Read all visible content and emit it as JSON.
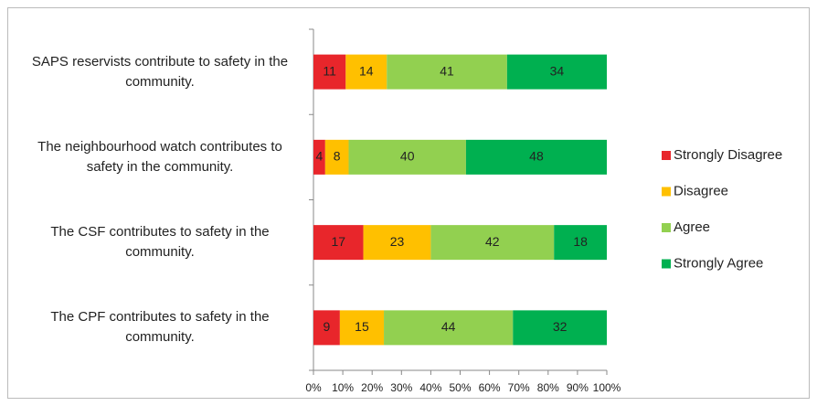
{
  "chart_data": {
    "type": "bar",
    "orientation": "horizontal",
    "stacked": true,
    "legend": "right",
    "categories": [
      "SAPS reservists contribute to safety in the community.",
      "The neighbourhood watch contributes to safety in the community.",
      "The CSF contributes to safety in the community.",
      "The CPF contributes to safety in the community."
    ],
    "series": [
      {
        "name": "Strongly Disagree",
        "color": "#e8262b",
        "values": [
          11,
          4,
          17,
          9
        ]
      },
      {
        "name": "Disagree",
        "color": "#ffc000",
        "values": [
          14,
          8,
          23,
          15
        ]
      },
      {
        "name": "Agree",
        "color": "#92d050",
        "values": [
          41,
          40,
          42,
          44
        ]
      },
      {
        "name": "Strongly Agree",
        "color": "#00b050",
        "values": [
          34,
          48,
          18,
          32
        ]
      }
    ],
    "xlim": [
      0,
      100
    ],
    "xticks": [
      {
        "value": 0,
        "label": "0%"
      },
      {
        "value": 10,
        "label": "10%"
      },
      {
        "value": 20,
        "label": "20%"
      },
      {
        "value": 30,
        "label": "30%"
      },
      {
        "value": 40,
        "label": "40%"
      },
      {
        "value": 50,
        "label": "50%"
      },
      {
        "value": 60,
        "label": "60%"
      },
      {
        "value": 70,
        "label": "70%"
      },
      {
        "value": 80,
        "label": "80%"
      },
      {
        "value": 90,
        "label": "90%"
      },
      {
        "value": 100,
        "label": "100%"
      }
    ],
    "grid": false
  }
}
